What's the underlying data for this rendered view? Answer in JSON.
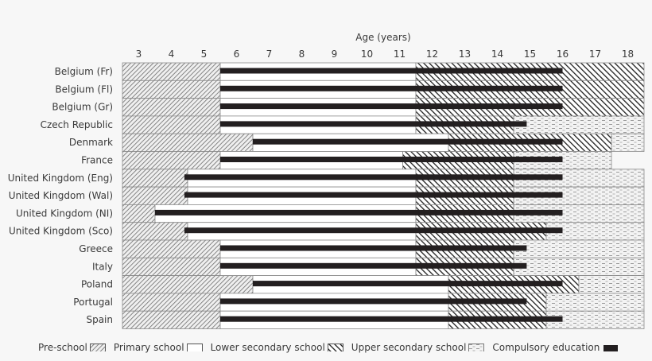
{
  "chart_data": {
    "type": "bar",
    "subtype": "horizontal-stacked-gantt",
    "title": "",
    "xlabel": "Age (years)",
    "ylabel": "",
    "xlim": [
      2.5,
      18.5
    ],
    "x_ticks": [
      3,
      4,
      5,
      6,
      7,
      8,
      9,
      10,
      11,
      12,
      13,
      14,
      15,
      16,
      17,
      18
    ],
    "grid": false,
    "legend_position": "bottom",
    "stages": [
      {
        "key": "pre",
        "label": "Pre-school",
        "pattern": "forward-hatch"
      },
      {
        "key": "primary",
        "label": "Primary school",
        "pattern": "white"
      },
      {
        "key": "lower",
        "label": "Lower secondary school",
        "pattern": "back-hatch"
      },
      {
        "key": "upper",
        "label": "Upper secondary school",
        "pattern": "dashed-dots"
      },
      {
        "key": "compulsory",
        "label": "Compulsory education",
        "pattern": "black-bar"
      }
    ],
    "rows": [
      {
        "country": "Belgium (Fr)",
        "pre": [
          2.5,
          5.5
        ],
        "primary": [
          5.5,
          11.5
        ],
        "lower": [
          11.5,
          18.5
        ],
        "upper": null,
        "compulsory": [
          5.5,
          16
        ]
      },
      {
        "country": "Belgium (Fl)",
        "pre": [
          2.5,
          5.5
        ],
        "primary": [
          5.5,
          11.5
        ],
        "lower": [
          11.5,
          18.5
        ],
        "upper": null,
        "compulsory": [
          5.5,
          16
        ]
      },
      {
        "country": "Belgium (Gr)",
        "pre": [
          2.5,
          5.5
        ],
        "primary": [
          5.5,
          11.5
        ],
        "lower": [
          11.5,
          18.5
        ],
        "upper": null,
        "compulsory": [
          5.5,
          16
        ]
      },
      {
        "country": "Czech Republic",
        "pre": [
          2.5,
          5.5
        ],
        "primary": [
          5.5,
          11.5
        ],
        "lower": [
          11.5,
          14.5
        ],
        "upper": [
          14.5,
          18.5
        ],
        "compulsory": [
          5.5,
          14.9
        ]
      },
      {
        "country": "Denmark",
        "pre": [
          2.5,
          6.5
        ],
        "primary": [
          6.5,
          12.5
        ],
        "lower": [
          12.5,
          17.5
        ],
        "upper": [
          17.5,
          18.5
        ],
        "compulsory": [
          6.5,
          16
        ]
      },
      {
        "country": "France",
        "pre": [
          2.5,
          5.5
        ],
        "primary": [
          5.5,
          11.1
        ],
        "lower": [
          11.1,
          14.5
        ],
        "upper": [
          14.5,
          17.5
        ],
        "compulsory": [
          5.5,
          16
        ]
      },
      {
        "country": "United Kingdom (Eng)",
        "pre": [
          2.5,
          4.5
        ],
        "primary": [
          4.5,
          11.5
        ],
        "lower": [
          11.5,
          14.5
        ],
        "upper": [
          14.5,
          18.5
        ],
        "compulsory": [
          4.4,
          16
        ]
      },
      {
        "country": "United Kingdom (Wal)",
        "pre": [
          2.5,
          4.5
        ],
        "primary": [
          4.5,
          11.5
        ],
        "lower": [
          11.5,
          14.5
        ],
        "upper": [
          14.5,
          18.5
        ],
        "compulsory": [
          4.4,
          16
        ]
      },
      {
        "country": "United Kingdom (NI)",
        "pre": [
          2.5,
          3.5
        ],
        "primary": [
          3.5,
          11.5
        ],
        "lower": [
          11.5,
          14.5
        ],
        "upper": [
          14.5,
          18.5
        ],
        "compulsory": [
          3.5,
          16
        ]
      },
      {
        "country": "United Kingdom (Sco)",
        "pre": [
          2.5,
          4.5
        ],
        "primary": [
          4.5,
          11.5
        ],
        "lower": [
          11.5,
          15.5
        ],
        "upper": [
          15.5,
          18.5
        ],
        "compulsory": [
          4.4,
          16
        ]
      },
      {
        "country": "Greece",
        "pre": [
          2.5,
          5.5
        ],
        "primary": [
          5.5,
          11.5
        ],
        "lower": [
          11.5,
          14.5
        ],
        "upper": [
          14.5,
          18.5
        ],
        "compulsory": [
          5.5,
          14.9
        ]
      },
      {
        "country": "Italy",
        "pre": [
          2.5,
          5.5
        ],
        "primary": [
          5.5,
          11.5
        ],
        "lower": [
          11.5,
          14.5
        ],
        "upper": [
          14.5,
          18.5
        ],
        "compulsory": [
          5.5,
          14.9
        ]
      },
      {
        "country": "Poland",
        "pre": [
          2.5,
          6.5
        ],
        "primary": [
          6.5,
          12.5
        ],
        "lower": [
          12.5,
          16.5
        ],
        "upper": [
          16.5,
          18.5
        ],
        "compulsory": [
          6.5,
          16
        ]
      },
      {
        "country": "Portugal",
        "pre": [
          2.5,
          5.5
        ],
        "primary": [
          5.5,
          12.5
        ],
        "lower": [
          12.5,
          15.5
        ],
        "upper": [
          15.5,
          18.5
        ],
        "compulsory": [
          5.5,
          14.9
        ]
      },
      {
        "country": "Spain",
        "pre": [
          2.5,
          5.5
        ],
        "primary": [
          5.5,
          12.5
        ],
        "lower": [
          12.5,
          15.5
        ],
        "upper": [
          15.5,
          18.5
        ],
        "compulsory": [
          5.5,
          16
        ]
      }
    ]
  },
  "colors": {
    "background": "#f7f7f7",
    "text": "#3a3a3a",
    "border": "#8a8a8a",
    "hatch": "#555555",
    "back_hatch": "#1e1e1e",
    "compulsory": "#231f20"
  }
}
